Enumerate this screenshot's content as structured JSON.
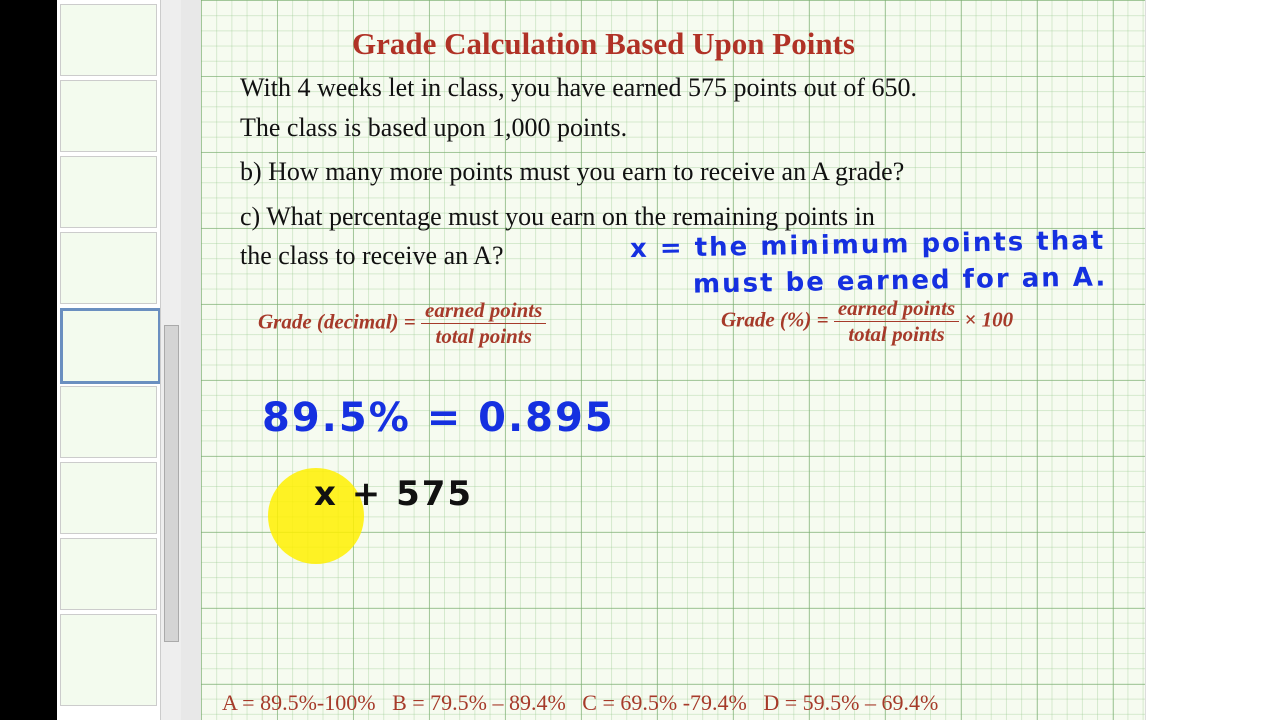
{
  "header": {
    "title": "Grade Calculation Based Upon Points"
  },
  "problem": {
    "lines": [
      "With 4 weeks let in class, you have earned 575 points out of 650.",
      "The class is based upon 1,000 points."
    ]
  },
  "questions": [
    {
      "lines": [
        "b) How many more points must you earn to receive an A grade?"
      ]
    },
    {
      "lines": [
        "c) What percentage must you earn on the remaining points in",
        "the class to receive an A?"
      ]
    }
  ],
  "formulas": [
    {
      "lhs": "Grade (decimal) =",
      "numerator": "earned points",
      "denominator": "total points"
    },
    {
      "lhs": "Grade (%) =",
      "numerator": "earned points",
      "denominator": "total points",
      "suffix": "× 100"
    }
  ],
  "handwriting": {
    "definition": [
      "x = the minimum points that",
      "must be earned for an A."
    ],
    "conversion": "89.5% = 0.895",
    "expression": "x + 575"
  },
  "grade_scale": [
    "A = 89.5%-100%",
    "B = 79.5% – 89.4%",
    "C = 69.5% -79.4%",
    "D = 59.5% – 69.4%"
  ]
}
